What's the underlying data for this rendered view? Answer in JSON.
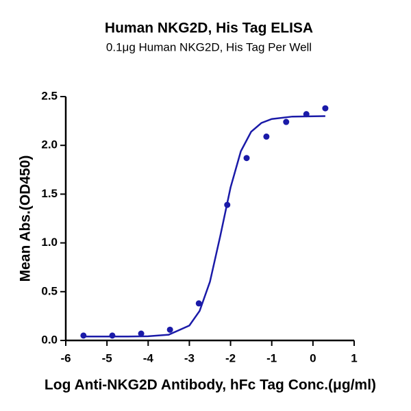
{
  "chart_data": {
    "type": "scatter",
    "title": "Human NKG2D, His Tag ELISA",
    "subtitle": "0.1μg Human NKG2D, His Tag Per Well",
    "x_label": "Log Anti-NKG2D Antibody, hFc Tag Conc.(μg/ml)",
    "y_label": "Mean Abs.(OD450)",
    "xlim": [
      -6,
      1
    ],
    "ylim": [
      0,
      2.5
    ],
    "xticks": [
      -6,
      -5,
      -4,
      -3,
      -2,
      -1,
      0,
      1
    ],
    "yticks": [
      {
        "value": 0,
        "label": "0.0"
      },
      0.5,
      {
        "value": 1,
        "label": "1.0"
      },
      1.5,
      {
        "value": 2,
        "label": "2.0"
      },
      2.5
    ],
    "series": [
      {
        "type": "scatter",
        "color": "#1a1aa8",
        "x": [
          -5.57,
          -4.87,
          -4.17,
          -3.47,
          -2.77,
          -2.08,
          -1.61,
          -1.13,
          -0.65,
          -0.16,
          0.3
        ],
        "values": [
          0.05,
          0.05,
          0.07,
          0.11,
          0.38,
          1.39,
          1.87,
          2.09,
          2.24,
          2.32,
          2.38
        ]
      },
      {
        "type": "line",
        "color": "#1a1aa8",
        "x": [
          -5.6,
          -4.5,
          -4.0,
          -3.5,
          -3.0,
          -2.75,
          -2.5,
          -2.25,
          -2.0,
          -1.75,
          -1.5,
          -1.25,
          -1.0,
          -0.5,
          0.3
        ],
        "values": [
          0.04,
          0.04,
          0.043,
          0.059,
          0.153,
          0.303,
          0.602,
          1.07,
          1.568,
          1.94,
          2.14,
          2.23,
          2.27,
          2.295,
          2.3
        ]
      }
    ]
  }
}
